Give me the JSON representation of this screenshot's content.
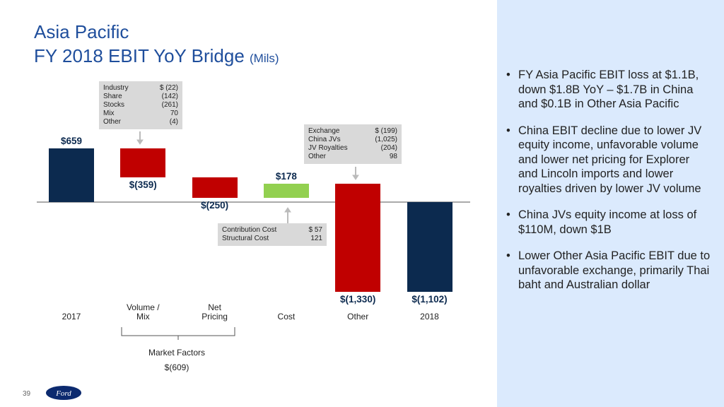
{
  "title": "Asia Pacific",
  "subtitle": "FY 2018 EBIT YoY Bridge",
  "unit_note": "(Mils)",
  "chart_data": {
    "type": "waterfall",
    "categories": [
      "2017",
      "Volume / Mix",
      "Net Pricing",
      "Cost",
      "Other",
      "2018"
    ],
    "values": [
      659,
      -359,
      -250,
      178,
      -1330,
      -1102
    ],
    "value_labels": [
      "$659",
      "$(359)",
      "$(250)",
      "$178",
      "$(1,330)",
      "$(1,102)"
    ],
    "is_total": [
      true,
      false,
      false,
      false,
      false,
      true
    ],
    "colors": {
      "total": "#0c2a4f",
      "increase": "#92d050",
      "decrease": "#c00000"
    }
  },
  "callouts": [
    {
      "rows": [
        [
          "Industry",
          "$ (22)"
        ],
        [
          "Share",
          "(142)"
        ],
        [
          "Stocks",
          "(261)"
        ],
        [
          "Mix",
          "70"
        ],
        [
          "Other",
          "(4)"
        ]
      ]
    },
    {
      "rows": [
        [
          "Exchange",
          "$ (199)"
        ],
        [
          "China JVs",
          "(1,025)"
        ],
        [
          "JV Royalties",
          "(204)"
        ],
        [
          "Other",
          "98"
        ]
      ]
    },
    {
      "rows": [
        [
          "Contribution Cost",
          "$ 57"
        ],
        [
          "Structural Cost",
          "121"
        ]
      ]
    }
  ],
  "market_factors": {
    "label": "Market Factors",
    "value": "$(609)"
  },
  "bullets": [
    "FY Asia Pacific EBIT loss at $1.1B, down $1.8B YoY – $1.7B in China and $0.1B in Other Asia Pacific",
    "China EBIT decline due to lower JV equity income, unfavorable volume and lower net pricing for Explorer and Lincoln imports and lower royalties driven by lower JV volume",
    "China JVs equity income at loss of $110M, down $1B",
    "Lower Other Asia Pacific EBIT due to unfavorable exchange, primarily Thai baht and Australian dollar"
  ],
  "page_number": "39",
  "logo": "Ford"
}
